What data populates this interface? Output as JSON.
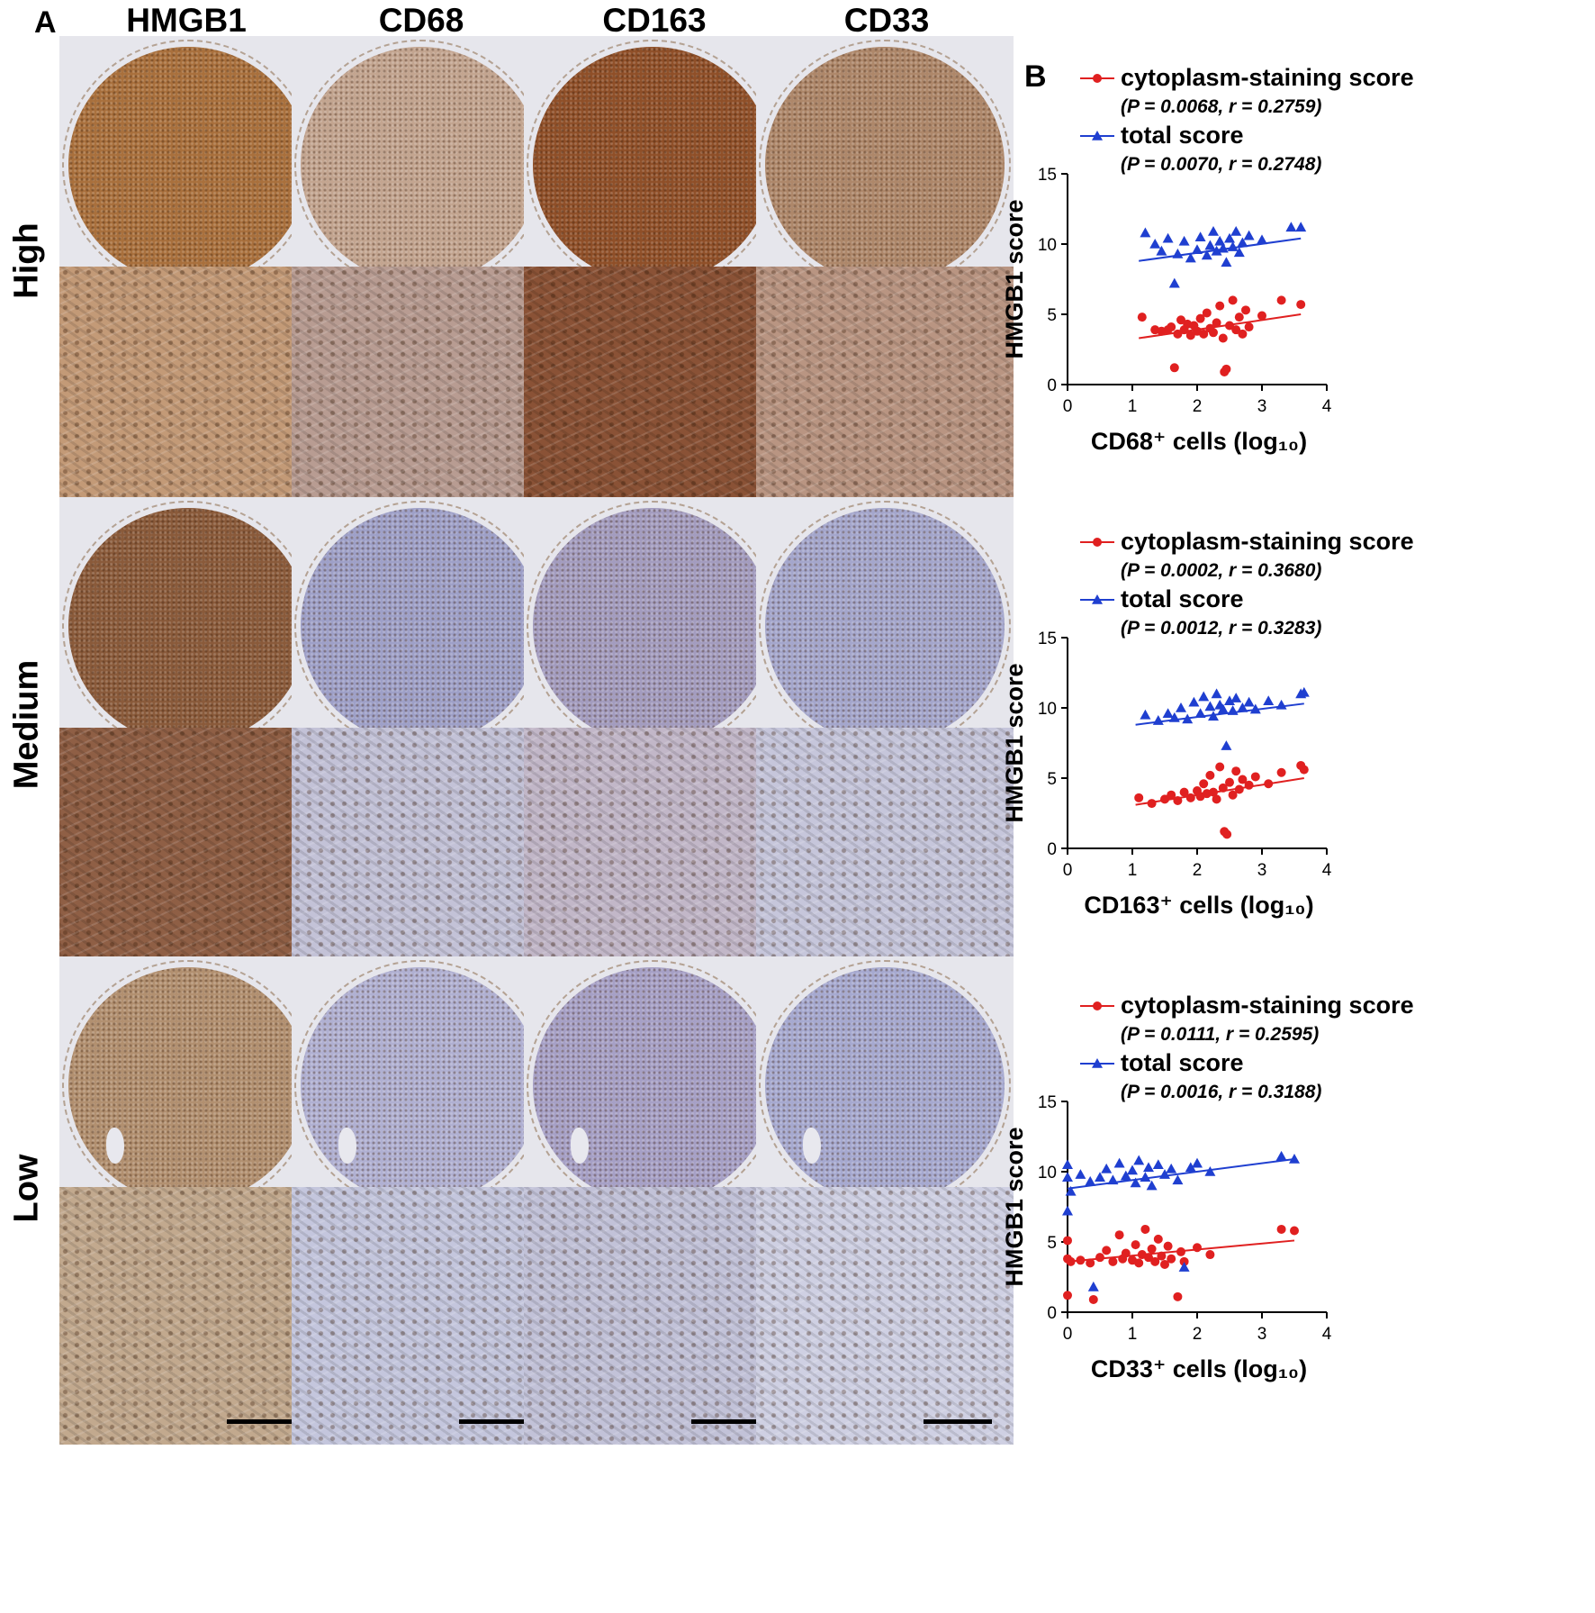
{
  "panel_a": {
    "letter": "A",
    "columns": [
      "HMGB1",
      "CD68",
      "CD163",
      "CD33"
    ],
    "rows": [
      "High",
      "Medium",
      "Low"
    ],
    "tiles": [
      {
        "row": 0,
        "kind": "core",
        "colors": [
          "#a9703c",
          "#c3a590",
          "#8f4f28",
          "#ae876a"
        ]
      },
      {
        "row": 0,
        "kind": "zoom",
        "colors": [
          "#c39a77",
          "#b89c92",
          "#8a5236",
          "#b99582"
        ]
      },
      {
        "row": 1,
        "kind": "core",
        "colors": [
          "#8a5a3a",
          "#9ea0c8",
          "#a39cbf",
          "#a4a6cc"
        ]
      },
      {
        "row": 1,
        "kind": "zoom",
        "colors": [
          "#8f5f45",
          "#c3c2d7",
          "#c2b7c8",
          "#c6c6db"
        ]
      },
      {
        "row": 2,
        "kind": "core",
        "colors": [
          "#b29070",
          "#b0b0d2",
          "#a6a0c6",
          "#a6a9d0"
        ]
      },
      {
        "row": 2,
        "kind": "zoom",
        "colors": [
          "#c2a98e",
          "#c4c6dd",
          "#c2c2d8",
          "#cfd0e3"
        ]
      }
    ]
  },
  "panel_b": {
    "letter": "B"
  },
  "chart_data": [
    {
      "type": "scatter",
      "xlabel": "CD68⁺ cells (log₁₀)",
      "ylabel": "HMGB1 score",
      "xlim": [
        0,
        4
      ],
      "ylim": [
        0,
        15
      ],
      "xticks": [
        0,
        1,
        2,
        3,
        4
      ],
      "yticks": [
        0,
        5,
        10,
        15
      ],
      "legend_position": "top",
      "series": [
        {
          "name": "cytoplasm-staining score",
          "stat": "(P = 0.0068, r = 0.2759)",
          "color": "#e02020",
          "marker": "circle",
          "fit": [
            [
              1.1,
              3.3
            ],
            [
              3.6,
              5.0
            ]
          ],
          "points": [
            [
              1.15,
              4.8
            ],
            [
              1.35,
              3.9
            ],
            [
              1.45,
              3.8
            ],
            [
              1.55,
              3.9
            ],
            [
              1.6,
              4.1
            ],
            [
              1.65,
              1.2
            ],
            [
              1.7,
              3.6
            ],
            [
              1.75,
              4.6
            ],
            [
              1.8,
              3.9
            ],
            [
              1.85,
              4.3
            ],
            [
              1.9,
              3.5
            ],
            [
              1.95,
              4.2
            ],
            [
              2.0,
              3.8
            ],
            [
              2.05,
              4.7
            ],
            [
              2.1,
              3.6
            ],
            [
              2.15,
              5.1
            ],
            [
              2.2,
              4.0
            ],
            [
              2.25,
              3.7
            ],
            [
              2.3,
              4.4
            ],
            [
              2.35,
              5.6
            ],
            [
              2.4,
              3.3
            ],
            [
              2.42,
              0.9
            ],
            [
              2.45,
              1.1
            ],
            [
              2.5,
              4.2
            ],
            [
              2.55,
              6.0
            ],
            [
              2.6,
              3.9
            ],
            [
              2.65,
              4.8
            ],
            [
              2.7,
              3.6
            ],
            [
              2.75,
              5.3
            ],
            [
              2.8,
              4.1
            ],
            [
              3.0,
              4.9
            ],
            [
              3.3,
              6.0
            ],
            [
              3.6,
              5.7
            ]
          ]
        },
        {
          "name": "total score",
          "stat": "(P = 0.0070, r = 0.2748)",
          "color": "#1f3fd0",
          "marker": "triangle",
          "fit": [
            [
              1.1,
              8.8
            ],
            [
              3.6,
              10.4
            ]
          ],
          "points": [
            [
              1.2,
              10.8
            ],
            [
              1.35,
              10.0
            ],
            [
              1.45,
              9.5
            ],
            [
              1.55,
              10.4
            ],
            [
              1.65,
              7.2
            ],
            [
              1.7,
              9.3
            ],
            [
              1.8,
              10.2
            ],
            [
              1.9,
              9.0
            ],
            [
              2.0,
              9.6
            ],
            [
              2.05,
              10.5
            ],
            [
              2.15,
              9.2
            ],
            [
              2.2,
              9.9
            ],
            [
              2.25,
              10.9
            ],
            [
              2.3,
              9.5
            ],
            [
              2.35,
              10.2
            ],
            [
              2.4,
              9.7
            ],
            [
              2.45,
              8.7
            ],
            [
              2.5,
              10.4
            ],
            [
              2.55,
              9.8
            ],
            [
              2.6,
              10.9
            ],
            [
              2.65,
              9.4
            ],
            [
              2.7,
              10.1
            ],
            [
              2.8,
              10.6
            ],
            [
              3.0,
              10.3
            ],
            [
              3.45,
              11.2
            ],
            [
              3.6,
              11.2
            ]
          ]
        }
      ]
    },
    {
      "type": "scatter",
      "xlabel": "CD163⁺ cells (log₁₀)",
      "ylabel": "HMGB1 score",
      "xlim": [
        0,
        4
      ],
      "ylim": [
        0,
        15
      ],
      "xticks": [
        0,
        1,
        2,
        3,
        4
      ],
      "yticks": [
        0,
        5,
        10,
        15
      ],
      "legend_position": "top",
      "series": [
        {
          "name": "cytoplasm-staining score",
          "stat": "(P = 0.0002, r = 0.3680)",
          "color": "#e02020",
          "marker": "circle",
          "fit": [
            [
              1.05,
              3.1
            ],
            [
              3.65,
              5.0
            ]
          ],
          "points": [
            [
              1.1,
              3.6
            ],
            [
              1.3,
              3.2
            ],
            [
              1.5,
              3.5
            ],
            [
              1.6,
              3.8
            ],
            [
              1.7,
              3.4
            ],
            [
              1.8,
              4.0
            ],
            [
              1.9,
              3.6
            ],
            [
              2.0,
              4.1
            ],
            [
              2.05,
              3.7
            ],
            [
              2.1,
              4.6
            ],
            [
              2.15,
              3.9
            ],
            [
              2.2,
              5.2
            ],
            [
              2.25,
              4.0
            ],
            [
              2.3,
              3.5
            ],
            [
              2.35,
              5.8
            ],
            [
              2.4,
              4.3
            ],
            [
              2.42,
              1.2
            ],
            [
              2.46,
              1.0
            ],
            [
              2.5,
              4.7
            ],
            [
              2.55,
              3.8
            ],
            [
              2.6,
              5.5
            ],
            [
              2.65,
              4.2
            ],
            [
              2.7,
              4.9
            ],
            [
              2.8,
              4.5
            ],
            [
              2.9,
              5.1
            ],
            [
              3.1,
              4.6
            ],
            [
              3.3,
              5.4
            ],
            [
              3.6,
              5.9
            ],
            [
              3.65,
              5.6
            ]
          ]
        },
        {
          "name": "total score",
          "stat": "(P = 0.0012, r = 0.3283)",
          "color": "#1f3fd0",
          "marker": "triangle",
          "fit": [
            [
              1.05,
              8.8
            ],
            [
              3.65,
              10.3
            ]
          ],
          "points": [
            [
              1.2,
              9.5
            ],
            [
              1.4,
              9.1
            ],
            [
              1.55,
              9.6
            ],
            [
              1.65,
              9.3
            ],
            [
              1.75,
              10.0
            ],
            [
              1.85,
              9.2
            ],
            [
              1.95,
              10.4
            ],
            [
              2.05,
              9.6
            ],
            [
              2.1,
              10.8
            ],
            [
              2.2,
              10.1
            ],
            [
              2.25,
              9.4
            ],
            [
              2.3,
              11.0
            ],
            [
              2.35,
              10.2
            ],
            [
              2.4,
              9.9
            ],
            [
              2.45,
              7.3
            ],
            [
              2.5,
              10.5
            ],
            [
              2.55,
              9.8
            ],
            [
              2.6,
              10.7
            ],
            [
              2.7,
              10.0
            ],
            [
              2.8,
              10.4
            ],
            [
              2.9,
              9.9
            ],
            [
              3.1,
              10.5
            ],
            [
              3.3,
              10.2
            ],
            [
              3.6,
              11.0
            ],
            [
              3.65,
              11.1
            ]
          ]
        }
      ]
    },
    {
      "type": "scatter",
      "xlabel": "CD33⁺ cells (log₁₀)",
      "ylabel": "HMGB1 score",
      "xlim": [
        0,
        4
      ],
      "ylim": [
        0,
        15
      ],
      "xticks": [
        0,
        1,
        2,
        3,
        4
      ],
      "yticks": [
        0,
        5,
        10,
        15
      ],
      "legend_position": "top",
      "series": [
        {
          "name": "cytoplasm-staining score",
          "stat": "(P = 0.0111, r = 0.2595)",
          "color": "#e02020",
          "marker": "circle",
          "fit": [
            [
              0.0,
              3.6
            ],
            [
              3.5,
              5.1
            ]
          ],
          "points": [
            [
              0.0,
              5.1
            ],
            [
              0.0,
              3.8
            ],
            [
              0.0,
              1.2
            ],
            [
              0.05,
              3.6
            ],
            [
              0.2,
              3.7
            ],
            [
              0.35,
              3.5
            ],
            [
              0.4,
              0.9
            ],
            [
              0.5,
              3.9
            ],
            [
              0.6,
              4.4
            ],
            [
              0.7,
              3.6
            ],
            [
              0.8,
              5.5
            ],
            [
              0.85,
              3.8
            ],
            [
              0.9,
              4.2
            ],
            [
              1.0,
              3.7
            ],
            [
              1.05,
              4.8
            ],
            [
              1.1,
              3.5
            ],
            [
              1.15,
              4.1
            ],
            [
              1.2,
              5.9
            ],
            [
              1.25,
              3.9
            ],
            [
              1.3,
              4.5
            ],
            [
              1.35,
              3.6
            ],
            [
              1.4,
              5.2
            ],
            [
              1.45,
              4.0
            ],
            [
              1.5,
              3.4
            ],
            [
              1.55,
              4.7
            ],
            [
              1.6,
              3.8
            ],
            [
              1.7,
              1.1
            ],
            [
              1.75,
              4.3
            ],
            [
              1.8,
              3.6
            ],
            [
              2.0,
              4.6
            ],
            [
              2.2,
              4.1
            ],
            [
              3.3,
              5.9
            ],
            [
              3.5,
              5.8
            ]
          ]
        },
        {
          "name": "total score",
          "stat": "(P = 0.0016, r = 0.3188)",
          "color": "#1f3fd0",
          "marker": "triangle",
          "fit": [
            [
              0.0,
              8.8
            ],
            [
              3.5,
              10.9
            ]
          ],
          "points": [
            [
              0.0,
              10.5
            ],
            [
              0.0,
              9.6
            ],
            [
              0.0,
              7.2
            ],
            [
              0.05,
              8.6
            ],
            [
              0.2,
              9.8
            ],
            [
              0.35,
              9.3
            ],
            [
              0.4,
              1.8
            ],
            [
              0.5,
              9.6
            ],
            [
              0.6,
              10.2
            ],
            [
              0.7,
              9.4
            ],
            [
              0.8,
              10.6
            ],
            [
              0.9,
              9.7
            ],
            [
              1.0,
              10.1
            ],
            [
              1.05,
              9.2
            ],
            [
              1.1,
              10.8
            ],
            [
              1.2,
              9.6
            ],
            [
              1.25,
              10.3
            ],
            [
              1.3,
              9.0
            ],
            [
              1.4,
              10.5
            ],
            [
              1.5,
              9.8
            ],
            [
              1.6,
              10.2
            ],
            [
              1.7,
              9.4
            ],
            [
              1.8,
              3.2
            ],
            [
              1.9,
              10.3
            ],
            [
              2.0,
              10.6
            ],
            [
              2.2,
              10.0
            ],
            [
              3.3,
              11.1
            ],
            [
              3.5,
              10.9
            ]
          ]
        }
      ]
    }
  ]
}
